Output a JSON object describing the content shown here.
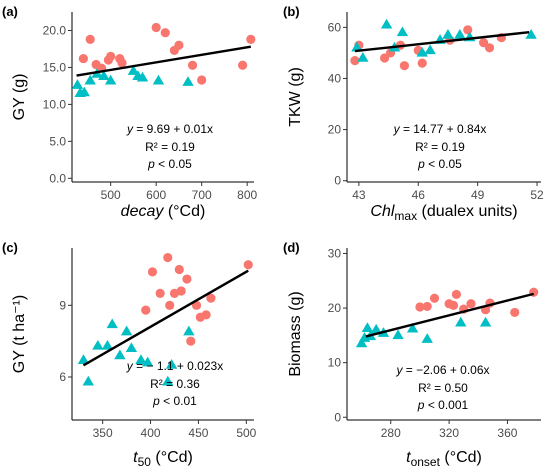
{
  "chart_data": [
    {
      "id": "a",
      "type": "scatter",
      "panel_label": "(a)",
      "xlabel_main": "decay",
      "xlabel_sub": "",
      "xlabel_unit": " (°Cd)",
      "xlabel_italic": true,
      "ylabel": "GY (g)",
      "xlim": [
        415,
        815
      ],
      "ylim": [
        -0.5,
        22.5
      ],
      "xticks": [
        500,
        600,
        700,
        800
      ],
      "yticks": [
        0.0,
        5.0,
        10.0,
        15.0,
        20.0
      ],
      "ytick_labels": [
        "0.0",
        "5.0",
        "10.0",
        "15.0",
        "20.0"
      ],
      "equation": "y = 9.69 + 0.01x",
      "r2": "R² = 0.19",
      "p": "p < 0.05",
      "fit": {
        "x": [
          425,
          808
        ],
        "y": [
          13.9,
          17.8
        ]
      },
      "series": [
        {
          "marker": "circle",
          "color": "#f8766d",
          "x": [
            440,
            455,
            468,
            480,
            495,
            500,
            520,
            525,
            600,
            620,
            640,
            650,
            680,
            700,
            790,
            808
          ],
          "y": [
            16.2,
            18.8,
            15.4,
            14.9,
            16.0,
            16.5,
            16.2,
            15.6,
            20.4,
            19.7,
            17.3,
            18.0,
            15.3,
            13.3,
            15.3,
            18.8
          ]
        },
        {
          "marker": "triangle",
          "color": "#00bfc4",
          "x": [
            427,
            433,
            442,
            455,
            470,
            485,
            500,
            550,
            560,
            570,
            605,
            670
          ],
          "y": [
            12.6,
            11.5,
            11.6,
            13.2,
            14.1,
            13.8,
            13.2,
            14.5,
            13.8,
            13.6,
            13.2,
            13.0
          ]
        }
      ]
    },
    {
      "id": "b",
      "type": "scatter",
      "panel_label": "(b)",
      "xlabel_main": "Chl",
      "xlabel_sub": "max",
      "xlabel_unit": " (dualex units)",
      "xlabel_italic": true,
      "ylabel": "TKW (g)",
      "xlim": [
        42.4,
        52.2
      ],
      "ylim": [
        -0.5,
        66
      ],
      "xticks": [
        43,
        46,
        49,
        52
      ],
      "yticks": [
        0,
        20,
        40,
        60
      ],
      "ytick_labels": [
        "0",
        "20",
        "40",
        "60"
      ],
      "equation": "y = 14.77 + 0.84x",
      "r2": "R² = 0.19",
      "p": "p < 0.05",
      "fit": {
        "x": [
          42.8,
          51.6
        ],
        "y": [
          50.7,
          58.1
        ]
      },
      "series": [
        {
          "marker": "circle",
          "color": "#f8766d",
          "x": [
            42.8,
            43.0,
            44.3,
            44.6,
            45.1,
            45.3,
            46.0,
            46.2,
            47.6,
            48.5,
            49.3,
            49.6,
            50.2
          ],
          "y": [
            47,
            53,
            48,
            50,
            53,
            45,
            51,
            46,
            55,
            59,
            54,
            52,
            56
          ]
        },
        {
          "marker": "triangle",
          "color": "#00bfc4",
          "x": [
            42.9,
            43.2,
            44.4,
            44.8,
            45.2,
            46.2,
            46.6,
            47.1,
            47.5,
            48.1,
            48.6,
            51.7
          ],
          "y": [
            52,
            48,
            61,
            52,
            58,
            50,
            51,
            55,
            57,
            57,
            56,
            57
          ]
        }
      ]
    },
    {
      "id": "c",
      "type": "scatter",
      "panel_label": "(c)",
      "xlabel_main": "t",
      "xlabel_sub": "50",
      "xlabel_unit": " (°Cd)",
      "xlabel_italic": true,
      "ylabel": "GY (t ha⁻¹)",
      "xlim": [
        318,
        508
      ],
      "ylim": [
        4.2,
        11.4
      ],
      "xticks": [
        350,
        400,
        450,
        500
      ],
      "yticks": [
        6,
        9
      ],
      "ytick_labels": [
        "6",
        "9"
      ],
      "equation": "y = − 1.1 + 0.023x",
      "r2": "R² = 0.36",
      "p": "p < 0.01",
      "fit": {
        "x": [
          330,
          502
        ],
        "y": [
          6.49,
          10.45
        ]
      },
      "series": [
        {
          "marker": "circle",
          "color": "#f8766d",
          "x": [
            395,
            402,
            410,
            418,
            420,
            425,
            430,
            432,
            438,
            442,
            448,
            452,
            458,
            463,
            502
          ],
          "y": [
            8.8,
            10.4,
            9.5,
            11.0,
            9.0,
            9.5,
            10.5,
            9.6,
            10.1,
            7.5,
            9.0,
            8.5,
            8.6,
            9.3,
            10.7
          ]
        },
        {
          "marker": "triangle",
          "color": "#00bfc4",
          "x": [
            330,
            335,
            345,
            355,
            360,
            368,
            375,
            380,
            390,
            397,
            418,
            422,
            440
          ],
          "y": [
            6.7,
            5.8,
            7.3,
            7.3,
            8.2,
            6.9,
            7.9,
            7.2,
            6.7,
            6.6,
            5.8,
            6.5,
            7.9
          ]
        }
      ]
    },
    {
      "id": "d",
      "type": "scatter",
      "panel_label": "(d)",
      "xlabel_main": "t",
      "xlabel_sub": "onset",
      "xlabel_unit": " (°Cd)",
      "xlabel_italic": true,
      "ylabel": "Biomass (g)",
      "xlim": [
        250,
        383
      ],
      "ylim": [
        -0.5,
        31
      ],
      "xticks": [
        280,
        320,
        360
      ],
      "yticks": [
        0,
        10,
        20,
        30
      ],
      "ytick_labels": [
        "0",
        "10",
        "20",
        "30"
      ],
      "equation": "y = −2.06 + 0.06x",
      "r2": "R² = 0.50",
      "p": "p < 0.001",
      "fit": {
        "x": [
          263,
          378
        ],
        "y": [
          14.8,
          22.6
        ]
      },
      "series": [
        {
          "marker": "circle",
          "color": "#f8766d",
          "x": [
            300,
            305,
            310,
            320,
            323,
            325,
            330,
            335,
            345,
            348,
            365,
            378
          ],
          "y": [
            20.2,
            20.3,
            21.8,
            20.8,
            20.5,
            22.5,
            19.8,
            20.8,
            19.7,
            20.9,
            19.2,
            22.9
          ]
        },
        {
          "marker": "triangle",
          "color": "#00bfc4",
          "x": [
            260,
            262,
            264,
            266,
            270,
            275,
            285,
            295,
            305,
            328,
            345
          ],
          "y": [
            13.5,
            14.5,
            16.3,
            14.8,
            16.0,
            15.4,
            15.0,
            16.2,
            14.3,
            17.3,
            17.3
          ]
        }
      ]
    }
  ]
}
